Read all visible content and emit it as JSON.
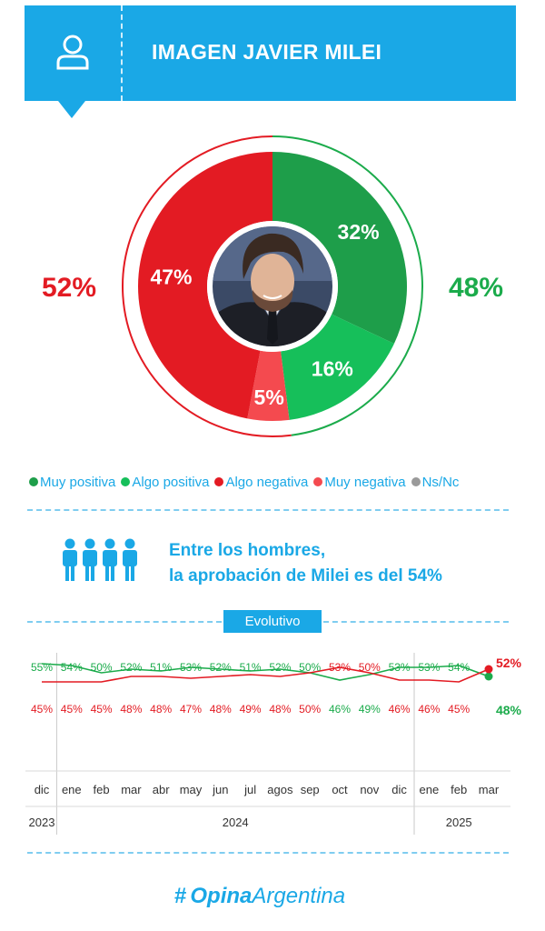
{
  "header": {
    "title": "IMAGEN JAVIER MILEI",
    "icon": "user-icon"
  },
  "totals": {
    "negative": "52%",
    "positive": "48%"
  },
  "colors": {
    "muy_positiva": "#1e9e4a",
    "algo_positiva": "#16bf5a",
    "algo_negativa": "#e31b23",
    "muy_negativa": "#f44a4f",
    "ns_nc": "#9a9a9a",
    "accent": "#1aa8e6",
    "positive_line": "#1bab4b",
    "negative_line": "#e31b23"
  },
  "callout": {
    "line1": "Entre los hombres,",
    "line2": "la aprobación de Milei es del 54%"
  },
  "evolutivo_label": "Evolutivo",
  "logo": {
    "hash": "#",
    "brand_bold": "Opina",
    "brand_rest": "Argentina"
  },
  "chart_data": [
    {
      "type": "pie",
      "slices": [
        {
          "name": "Muy positiva",
          "value": 32,
          "label": "32%"
        },
        {
          "name": "Algo positiva",
          "value": 16,
          "label": "16%"
        },
        {
          "name": "Muy negativa",
          "value": 5,
          "label": "5%"
        },
        {
          "name": "Algo negativa",
          "value": 47,
          "label": "47%"
        }
      ],
      "legend": [
        "Muy positiva",
        "Algo positiva",
        "Algo negativa",
        "Muy negativa",
        "Ns/Nc"
      ],
      "legend_placement": "bottom"
    },
    {
      "type": "line",
      "categories": [
        "dic",
        "ene",
        "feb",
        "mar",
        "abr",
        "may",
        "jun",
        "jul",
        "agos",
        "sep",
        "oct",
        "nov",
        "dic",
        "ene",
        "feb",
        "mar"
      ],
      "years": [
        {
          "label": "2023",
          "start": 0,
          "end": 0
        },
        {
          "label": "2024",
          "start": 1,
          "end": 12
        },
        {
          "label": "2025",
          "start": 13,
          "end": 15
        }
      ],
      "series": [
        {
          "key": "positive",
          "values": [
            55,
            54,
            50,
            52,
            51,
            53,
            52,
            51,
            52,
            50,
            46,
            49,
            53,
            53,
            54,
            48
          ]
        },
        {
          "key": "negative",
          "values": [
            45,
            45,
            45,
            48,
            48,
            47,
            48,
            49,
            48,
            50,
            53,
            50,
            46,
            46,
            45,
            52
          ]
        }
      ],
      "ylim": [
        40,
        60
      ],
      "grid": false
    }
  ]
}
